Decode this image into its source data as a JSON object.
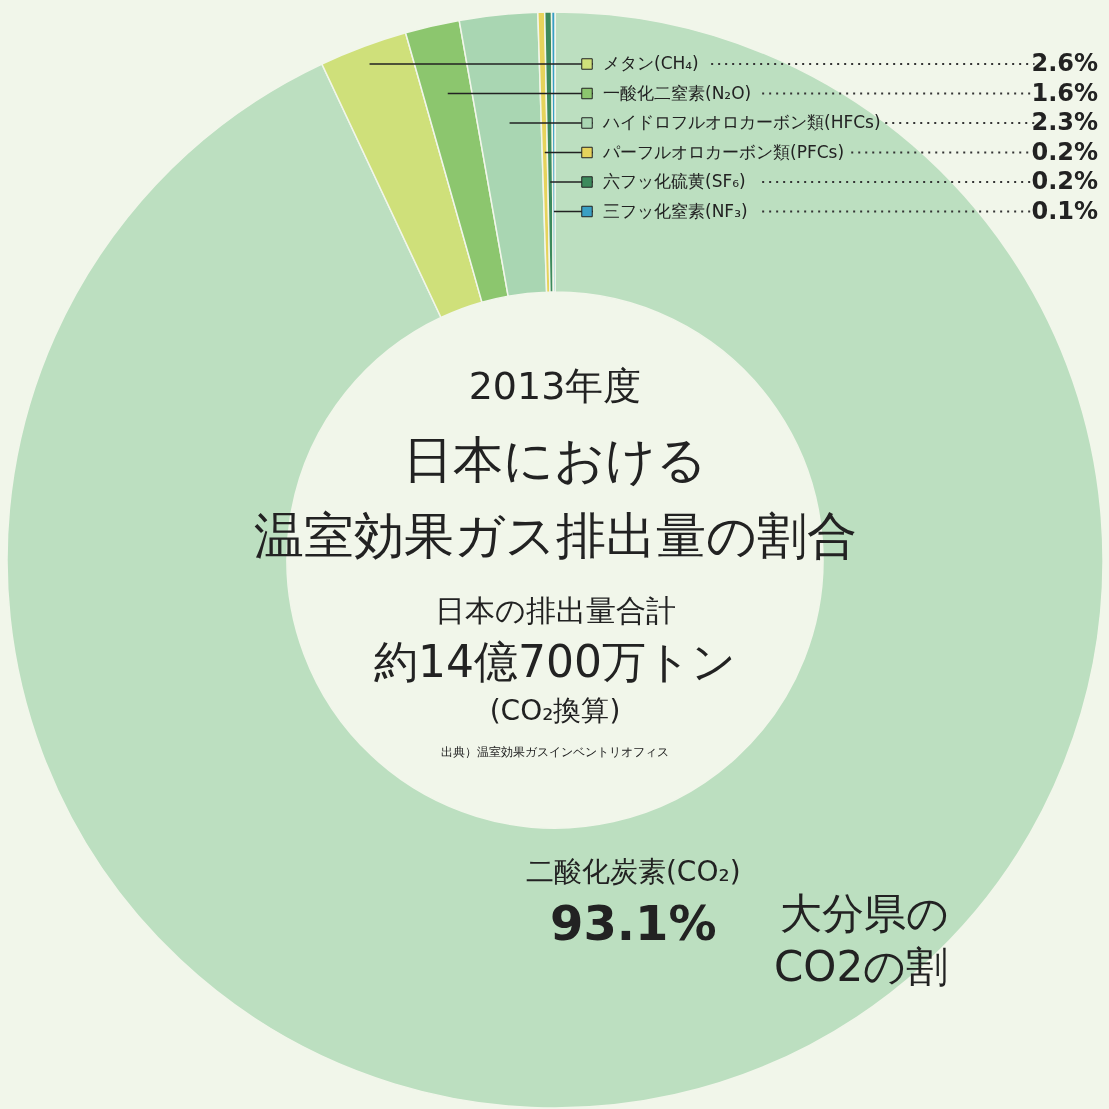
{
  "chart_data": {
    "type": "donut",
    "title": "日本における温室効果ガス排出量の割合",
    "subtitle": "2013年度",
    "categories": [
      "二酸化炭素(CO₂)",
      "メタン(CH₄)",
      "一酸化二窒素(N₂O)",
      "ハイドロフルオロカーボン類(HFCs)",
      "パーフルオロカーボン類(PFCs)",
      "六フッ化硫黄(SF₆)",
      "三フッ化窒素(NF₃)"
    ],
    "values": [
      93.1,
      2.6,
      1.6,
      2.3,
      0.2,
      0.2,
      0.1
    ],
    "colors": [
      "#bcdfc0",
      "#cfe07a",
      "#8cc66e",
      "#a9d6b2",
      "#e6d35c",
      "#3c8a5c",
      "#3a9fc4"
    ],
    "value_labels": [
      "93.1%",
      "2.6%",
      "1.6%",
      "2.3%",
      "0.2%",
      "0.2%",
      "0.1%"
    ],
    "legend": "top right",
    "annotations": [
      "日本の排出量合計",
      "約14億700万トン",
      "(CO₂換算)",
      "出典）温室効果ガスインベントリオフィス",
      "大分県の",
      "CO2の割"
    ]
  }
}
